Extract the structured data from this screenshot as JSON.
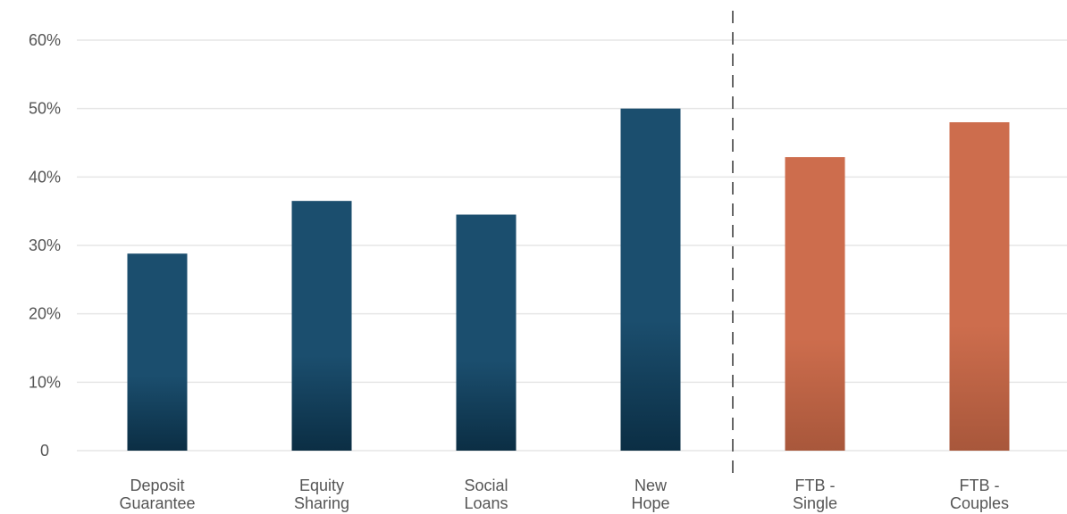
{
  "chart_data": {
    "type": "bar",
    "title": "",
    "xlabel": "",
    "ylabel": "",
    "ylim": [
      0,
      60
    ],
    "y_ticks": [
      {
        "value": 0,
        "label": "0"
      },
      {
        "value": 10,
        "label": "10%"
      },
      {
        "value": 20,
        "label": "20%"
      },
      {
        "value": 30,
        "label": "30%"
      },
      {
        "value": 40,
        "label": "40%"
      },
      {
        "value": 50,
        "label": "50%"
      },
      {
        "value": 60,
        "label": "60%"
      }
    ],
    "categories": [
      [
        "Deposit",
        "Guarantee"
      ],
      [
        "Equity",
        "Sharing"
      ],
      [
        "Social",
        "Loans"
      ],
      [
        "New",
        "Hope"
      ],
      [
        "FTB -",
        "Single"
      ],
      [
        "FTB -",
        "Couples"
      ]
    ],
    "values": [
      28.8,
      36.5,
      34.5,
      50.0,
      42.9,
      48.0
    ],
    "bar_groups": [
      "blue",
      "blue",
      "blue",
      "blue",
      "orange",
      "orange"
    ],
    "grid": true,
    "divider": "dashed vertical line between New Hope and FTB - Single",
    "colors": {
      "blue_top": "#1b4e6e",
      "blue_bottom": "#0b2e44",
      "orange_top": "#cd6d4d",
      "orange_bottom": "#a8573b",
      "grid": "#e6e6e6",
      "divider": "#666666",
      "text": "#555555"
    }
  }
}
